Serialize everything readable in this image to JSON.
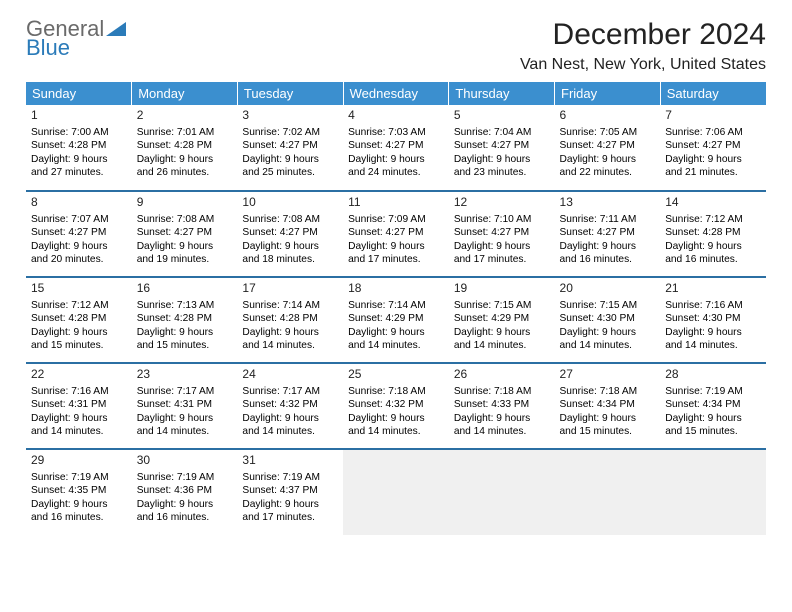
{
  "brand": {
    "part1": "General",
    "part2": "Blue",
    "color1": "#6a6a6a",
    "color2": "#2b7bb9"
  },
  "title": "December 2024",
  "location": "Van Nest, New York, United States",
  "header_bg": "#3b8fcf",
  "header_fg": "#ffffff",
  "border_color": "#2b6fa3",
  "empty_bg": "#f0f0f0",
  "days": [
    "Sunday",
    "Monday",
    "Tuesday",
    "Wednesday",
    "Thursday",
    "Friday",
    "Saturday"
  ],
  "weeks": [
    [
      {
        "n": "1",
        "sr": "Sunrise: 7:00 AM",
        "ss": "Sunset: 4:28 PM",
        "d1": "Daylight: 9 hours",
        "d2": "and 27 minutes."
      },
      {
        "n": "2",
        "sr": "Sunrise: 7:01 AM",
        "ss": "Sunset: 4:28 PM",
        "d1": "Daylight: 9 hours",
        "d2": "and 26 minutes."
      },
      {
        "n": "3",
        "sr": "Sunrise: 7:02 AM",
        "ss": "Sunset: 4:27 PM",
        "d1": "Daylight: 9 hours",
        "d2": "and 25 minutes."
      },
      {
        "n": "4",
        "sr": "Sunrise: 7:03 AM",
        "ss": "Sunset: 4:27 PM",
        "d1": "Daylight: 9 hours",
        "d2": "and 24 minutes."
      },
      {
        "n": "5",
        "sr": "Sunrise: 7:04 AM",
        "ss": "Sunset: 4:27 PM",
        "d1": "Daylight: 9 hours",
        "d2": "and 23 minutes."
      },
      {
        "n": "6",
        "sr": "Sunrise: 7:05 AM",
        "ss": "Sunset: 4:27 PM",
        "d1": "Daylight: 9 hours",
        "d2": "and 22 minutes."
      },
      {
        "n": "7",
        "sr": "Sunrise: 7:06 AM",
        "ss": "Sunset: 4:27 PM",
        "d1": "Daylight: 9 hours",
        "d2": "and 21 minutes."
      }
    ],
    [
      {
        "n": "8",
        "sr": "Sunrise: 7:07 AM",
        "ss": "Sunset: 4:27 PM",
        "d1": "Daylight: 9 hours",
        "d2": "and 20 minutes."
      },
      {
        "n": "9",
        "sr": "Sunrise: 7:08 AM",
        "ss": "Sunset: 4:27 PM",
        "d1": "Daylight: 9 hours",
        "d2": "and 19 minutes."
      },
      {
        "n": "10",
        "sr": "Sunrise: 7:08 AM",
        "ss": "Sunset: 4:27 PM",
        "d1": "Daylight: 9 hours",
        "d2": "and 18 minutes."
      },
      {
        "n": "11",
        "sr": "Sunrise: 7:09 AM",
        "ss": "Sunset: 4:27 PM",
        "d1": "Daylight: 9 hours",
        "d2": "and 17 minutes."
      },
      {
        "n": "12",
        "sr": "Sunrise: 7:10 AM",
        "ss": "Sunset: 4:27 PM",
        "d1": "Daylight: 9 hours",
        "d2": "and 17 minutes."
      },
      {
        "n": "13",
        "sr": "Sunrise: 7:11 AM",
        "ss": "Sunset: 4:27 PM",
        "d1": "Daylight: 9 hours",
        "d2": "and 16 minutes."
      },
      {
        "n": "14",
        "sr": "Sunrise: 7:12 AM",
        "ss": "Sunset: 4:28 PM",
        "d1": "Daylight: 9 hours",
        "d2": "and 16 minutes."
      }
    ],
    [
      {
        "n": "15",
        "sr": "Sunrise: 7:12 AM",
        "ss": "Sunset: 4:28 PM",
        "d1": "Daylight: 9 hours",
        "d2": "and 15 minutes."
      },
      {
        "n": "16",
        "sr": "Sunrise: 7:13 AM",
        "ss": "Sunset: 4:28 PM",
        "d1": "Daylight: 9 hours",
        "d2": "and 15 minutes."
      },
      {
        "n": "17",
        "sr": "Sunrise: 7:14 AM",
        "ss": "Sunset: 4:28 PM",
        "d1": "Daylight: 9 hours",
        "d2": "and 14 minutes."
      },
      {
        "n": "18",
        "sr": "Sunrise: 7:14 AM",
        "ss": "Sunset: 4:29 PM",
        "d1": "Daylight: 9 hours",
        "d2": "and 14 minutes."
      },
      {
        "n": "19",
        "sr": "Sunrise: 7:15 AM",
        "ss": "Sunset: 4:29 PM",
        "d1": "Daylight: 9 hours",
        "d2": "and 14 minutes."
      },
      {
        "n": "20",
        "sr": "Sunrise: 7:15 AM",
        "ss": "Sunset: 4:30 PM",
        "d1": "Daylight: 9 hours",
        "d2": "and 14 minutes."
      },
      {
        "n": "21",
        "sr": "Sunrise: 7:16 AM",
        "ss": "Sunset: 4:30 PM",
        "d1": "Daylight: 9 hours",
        "d2": "and 14 minutes."
      }
    ],
    [
      {
        "n": "22",
        "sr": "Sunrise: 7:16 AM",
        "ss": "Sunset: 4:31 PM",
        "d1": "Daylight: 9 hours",
        "d2": "and 14 minutes."
      },
      {
        "n": "23",
        "sr": "Sunrise: 7:17 AM",
        "ss": "Sunset: 4:31 PM",
        "d1": "Daylight: 9 hours",
        "d2": "and 14 minutes."
      },
      {
        "n": "24",
        "sr": "Sunrise: 7:17 AM",
        "ss": "Sunset: 4:32 PM",
        "d1": "Daylight: 9 hours",
        "d2": "and 14 minutes."
      },
      {
        "n": "25",
        "sr": "Sunrise: 7:18 AM",
        "ss": "Sunset: 4:32 PM",
        "d1": "Daylight: 9 hours",
        "d2": "and 14 minutes."
      },
      {
        "n": "26",
        "sr": "Sunrise: 7:18 AM",
        "ss": "Sunset: 4:33 PM",
        "d1": "Daylight: 9 hours",
        "d2": "and 14 minutes."
      },
      {
        "n": "27",
        "sr": "Sunrise: 7:18 AM",
        "ss": "Sunset: 4:34 PM",
        "d1": "Daylight: 9 hours",
        "d2": "and 15 minutes."
      },
      {
        "n": "28",
        "sr": "Sunrise: 7:19 AM",
        "ss": "Sunset: 4:34 PM",
        "d1": "Daylight: 9 hours",
        "d2": "and 15 minutes."
      }
    ],
    [
      {
        "n": "29",
        "sr": "Sunrise: 7:19 AM",
        "ss": "Sunset: 4:35 PM",
        "d1": "Daylight: 9 hours",
        "d2": "and 16 minutes."
      },
      {
        "n": "30",
        "sr": "Sunrise: 7:19 AM",
        "ss": "Sunset: 4:36 PM",
        "d1": "Daylight: 9 hours",
        "d2": "and 16 minutes."
      },
      {
        "n": "31",
        "sr": "Sunrise: 7:19 AM",
        "ss": "Sunset: 4:37 PM",
        "d1": "Daylight: 9 hours",
        "d2": "and 17 minutes."
      },
      null,
      null,
      null,
      null
    ]
  ]
}
